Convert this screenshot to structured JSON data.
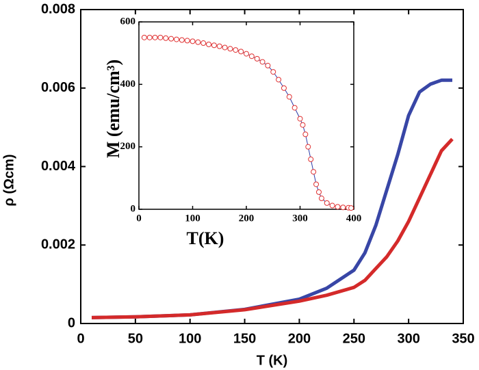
{
  "chart_data": [
    {
      "type": "line",
      "x_label": "T (K)",
      "y_label": "ρ (Ωcm)",
      "x": [
        10,
        50,
        100,
        150,
        200,
        225,
        250,
        260,
        270,
        280,
        290,
        300,
        310,
        320,
        330,
        340
      ],
      "series": [
        {
          "color": "#3846a6",
          "values": [
            0.00015,
            0.00017,
            0.00022,
            0.00036,
            0.00062,
            0.0009,
            0.00136,
            0.0018,
            0.0025,
            0.0034,
            0.0043,
            0.0053,
            0.0059,
            0.0061,
            0.0062,
            0.0062
          ]
        },
        {
          "color": "#d42a2a",
          "values": [
            0.00015,
            0.00017,
            0.00022,
            0.00035,
            0.00057,
            0.00072,
            0.00092,
            0.0011,
            0.0014,
            0.0017,
            0.0021,
            0.0026,
            0.0032,
            0.0038,
            0.0044,
            0.0047
          ]
        }
      ],
      "xlim": [
        0,
        350
      ],
      "xticks": [
        0,
        50,
        100,
        150,
        200,
        250,
        300,
        350
      ],
      "ylim": [
        0,
        0.008
      ],
      "yticks": [
        0,
        0.002,
        0.004,
        0.006,
        0.008
      ]
    },
    {
      "type": "line",
      "marker": "circle",
      "x_label": "T(K)",
      "y_label": "M (emu/cm³)",
      "x": [
        10,
        20,
        30,
        40,
        50,
        60,
        70,
        80,
        90,
        100,
        110,
        120,
        130,
        140,
        150,
        160,
        170,
        180,
        190,
        200,
        210,
        220,
        230,
        240,
        250,
        260,
        270,
        280,
        290,
        300,
        305,
        310,
        315,
        320,
        325,
        330,
        335,
        340,
        350,
        360,
        370,
        380,
        390,
        395
      ],
      "series": [
        {
          "color": "#e03030",
          "line_color": "#2a3aa8",
          "values": [
            550,
            550,
            550,
            550,
            548,
            546,
            544,
            542,
            540,
            538,
            535,
            532,
            528,
            525,
            522,
            518,
            514,
            510,
            505,
            498,
            490,
            482,
            472,
            460,
            440,
            415,
            388,
            360,
            325,
            290,
            270,
            240,
            200,
            160,
            120,
            80,
            55,
            35,
            20,
            12,
            8,
            6,
            5,
            4
          ]
        }
      ],
      "xlim": [
        0,
        400
      ],
      "xticks": [
        0,
        100,
        200,
        300,
        400
      ],
      "ylim": [
        0,
        600
      ],
      "yticks": [
        0,
        200,
        400,
        600
      ]
    }
  ]
}
